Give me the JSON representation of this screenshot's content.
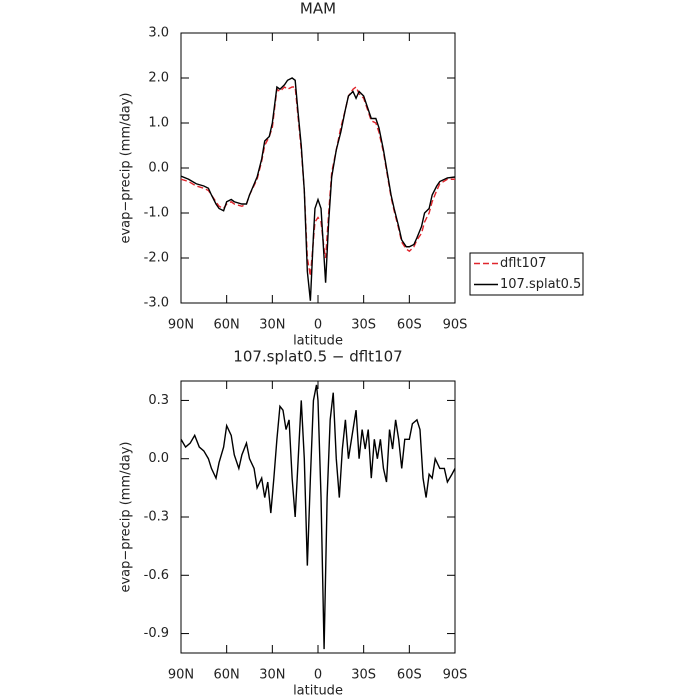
{
  "chart_data": [
    {
      "type": "line",
      "title": "MAM",
      "ylabel": "evap−precip (mm/day)",
      "xlabel": "latitude",
      "xlim": [
        90,
        -90
      ],
      "xticks": [
        {
          "value": 90,
          "label": "90N"
        },
        {
          "value": 60,
          "label": "60N"
        },
        {
          "value": 30,
          "label": "30N"
        },
        0,
        {
          "value": -30,
          "label": "30S"
        },
        {
          "value": -60,
          "label": "60S"
        },
        {
          "value": -90,
          "label": "90S"
        }
      ],
      "ylim": [
        -3,
        3
      ],
      "yticks": [
        {
          "value": 3,
          "label": "3.0"
        },
        {
          "value": 2,
          "label": "2.0"
        },
        {
          "value": 1,
          "label": "1.0"
        },
        {
          "value": 0,
          "label": "0.0"
        },
        {
          "value": -1,
          "label": "-1.0"
        },
        {
          "value": -2,
          "label": "-2.0"
        },
        {
          "value": -3,
          "label": "-3.0"
        }
      ],
      "legend": "right",
      "x": [
        90,
        85,
        80,
        75,
        72,
        70,
        67,
        65,
        62,
        60,
        57,
        55,
        50,
        47,
        45,
        40,
        37,
        35,
        32,
        30,
        27,
        25,
        22,
        20,
        17,
        15,
        13,
        11,
        9,
        7,
        5,
        3,
        2,
        0,
        -2,
        -4,
        -5,
        -7,
        -9,
        -12,
        -15,
        -18,
        -20,
        -23,
        -25,
        -27,
        -30,
        -33,
        -35,
        -38,
        -40,
        -43,
        -45,
        -48,
        -50,
        -53,
        -55,
        -58,
        -60,
        -63,
        -65,
        -68,
        -70,
        -73,
        -75,
        -78,
        -80,
        -85,
        -90
      ],
      "series": [
        {
          "name": "dflt107",
          "color": "#e0262d",
          "style": "dashed",
          "values": [
            -0.25,
            -0.3,
            -0.4,
            -0.45,
            -0.5,
            -0.6,
            -0.75,
            -0.85,
            -0.9,
            -0.8,
            -0.75,
            -0.8,
            -0.85,
            -0.8,
            -0.6,
            -0.25,
            0.15,
            0.5,
            0.7,
            0.9,
            1.75,
            1.7,
            1.8,
            1.75,
            1.8,
            1.8,
            1.1,
            0.4,
            -0.5,
            -2.0,
            -2.4,
            -1.6,
            -1.2,
            -1.1,
            -1.2,
            -1.8,
            -2.0,
            -1.0,
            -0.1,
            0.4,
            0.9,
            1.3,
            1.6,
            1.75,
            1.8,
            1.65,
            1.55,
            1.25,
            1.05,
            1.0,
            0.8,
            0.35,
            -0.05,
            -0.65,
            -0.95,
            -1.35,
            -1.65,
            -1.8,
            -1.85,
            -1.75,
            -1.6,
            -1.45,
            -1.2,
            -1.0,
            -0.75,
            -0.5,
            -0.35,
            -0.25,
            -0.25
          ]
        },
        {
          "name": "107.splat0.5",
          "color": "#000000",
          "style": "solid",
          "values": [
            -0.18,
            -0.25,
            -0.35,
            -0.4,
            -0.45,
            -0.6,
            -0.8,
            -0.9,
            -0.95,
            -0.75,
            -0.7,
            -0.75,
            -0.8,
            -0.8,
            -0.6,
            -0.2,
            0.2,
            0.6,
            0.7,
            1.0,
            1.8,
            1.75,
            1.85,
            1.95,
            2.0,
            1.95,
            1.2,
            0.5,
            -0.5,
            -2.3,
            -2.95,
            -1.5,
            -0.9,
            -0.7,
            -0.9,
            -2.0,
            -2.55,
            -1.2,
            -0.2,
            0.4,
            0.8,
            1.3,
            1.6,
            1.7,
            1.55,
            1.7,
            1.6,
            1.3,
            1.1,
            1.1,
            0.9,
            0.4,
            0.0,
            -0.6,
            -0.9,
            -1.3,
            -1.6,
            -1.75,
            -1.75,
            -1.7,
            -1.55,
            -1.3,
            -1.0,
            -0.9,
            -0.6,
            -0.4,
            -0.3,
            -0.22,
            -0.2
          ]
        }
      ]
    },
    {
      "type": "line",
      "title": "107.splat0.5 − dflt107",
      "ylabel": "evap−precip (mm/day)",
      "xlabel": "latitude",
      "xlim": [
        90,
        -90
      ],
      "xticks": [
        {
          "value": 90,
          "label": "90N"
        },
        {
          "value": 60,
          "label": "60N"
        },
        {
          "value": 30,
          "label": "30N"
        },
        0,
        {
          "value": -30,
          "label": "30S"
        },
        {
          "value": -60,
          "label": "60S"
        },
        {
          "value": -90,
          "label": "90S"
        }
      ],
      "ylim": [
        -1.0,
        0.4
      ],
      "yticks": [
        0.3,
        {
          "value": 0,
          "label": "0.0"
        },
        -0.3,
        -0.6,
        -0.9
      ],
      "color": "#000000",
      "x": [
        90,
        87,
        84,
        81,
        78,
        75,
        72,
        70,
        67,
        65,
        62,
        60,
        57,
        55,
        52,
        50,
        47,
        45,
        42,
        40,
        37,
        35,
        33,
        31,
        29,
        27,
        25,
        23,
        21,
        19,
        17,
        15,
        13,
        11,
        9,
        7,
        5,
        3,
        1,
        0,
        -2,
        -4,
        -6,
        -8,
        -10,
        -12,
        -14,
        -16,
        -18,
        -20,
        -22,
        -25,
        -27,
        -29,
        -31,
        -33,
        -35,
        -37,
        -39,
        -41,
        -43,
        -45,
        -47,
        -49,
        -51,
        -53,
        -55,
        -57,
        -60,
        -62,
        -65,
        -67,
        -69,
        -71,
        -73,
        -75,
        -77,
        -80,
        -83,
        -85,
        -88,
        -90
      ],
      "values": [
        0.1,
        0.06,
        0.08,
        0.12,
        0.06,
        0.04,
        0.0,
        -0.05,
        -0.1,
        -0.02,
        0.06,
        0.17,
        0.12,
        0.02,
        -0.05,
        0.02,
        0.08,
        0.0,
        -0.05,
        -0.15,
        -0.1,
        -0.2,
        -0.12,
        -0.28,
        -0.1,
        0.1,
        0.27,
        0.25,
        0.15,
        0.2,
        -0.1,
        -0.3,
        0.0,
        0.3,
        0.0,
        -0.55,
        -0.1,
        0.3,
        0.38,
        0.3,
        -0.2,
        -0.98,
        -0.2,
        0.2,
        0.34,
        0.0,
        -0.2,
        0.05,
        0.2,
        0.0,
        0.1,
        0.25,
        0.0,
        0.15,
        0.05,
        0.15,
        -0.1,
        0.1,
        0.0,
        0.1,
        -0.05,
        -0.12,
        0.15,
        0.05,
        0.2,
        0.1,
        -0.05,
        0.1,
        0.1,
        0.18,
        0.2,
        0.15,
        -0.1,
        -0.2,
        -0.08,
        -0.1,
        0.0,
        -0.05,
        -0.05,
        -0.12,
        -0.08,
        -0.05
      ]
    }
  ]
}
